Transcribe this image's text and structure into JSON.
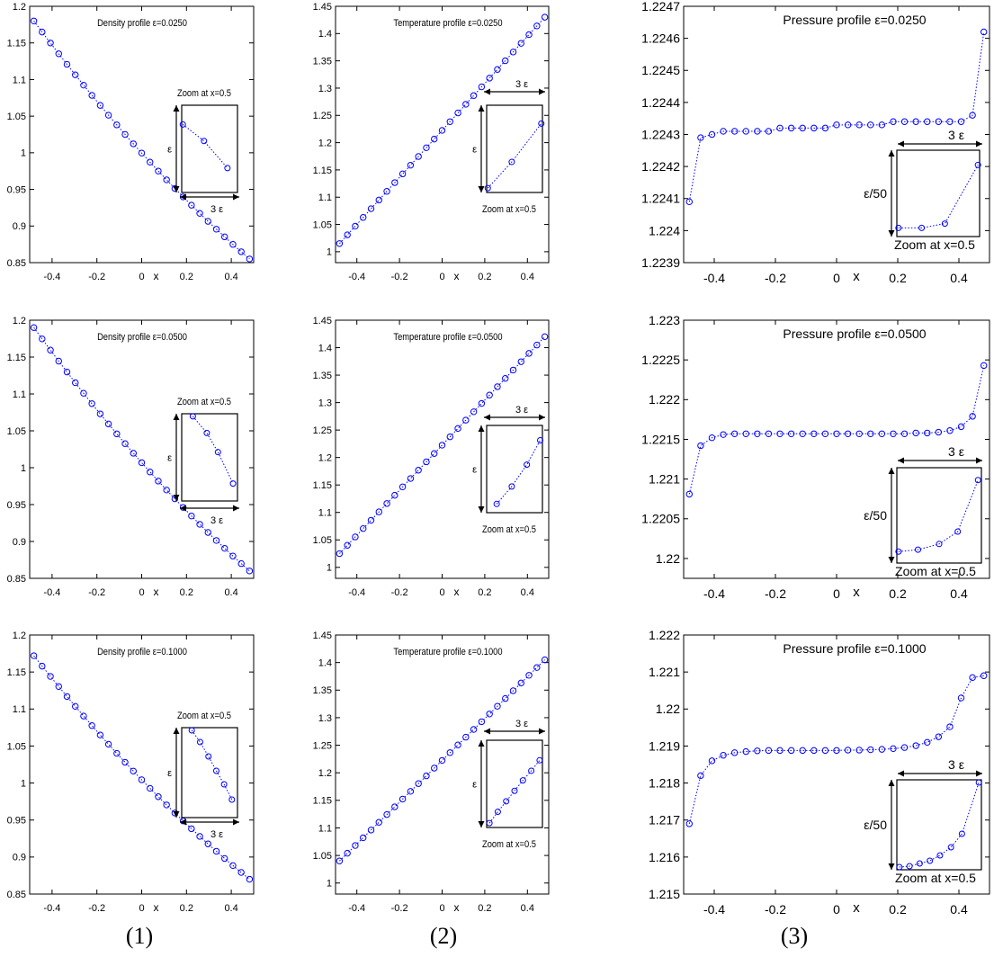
{
  "captions": [
    "(1)",
    "(2)",
    "(3)"
  ],
  "style": {
    "series_color": "#0000ff",
    "frame_color": "#000000"
  },
  "chart_data": [
    {
      "type": "scatter",
      "title": "Density profile ε=0.0250",
      "xlabel": "x",
      "ylabel": "",
      "xlim": [
        -0.5,
        0.5
      ],
      "ylim": [
        0.85,
        1.2
      ],
      "xticks": [
        "-0.4",
        "-0.2",
        "0",
        "0.2",
        "0.4"
      ],
      "yticks": [
        "0.85",
        "0.9",
        "0.95",
        "1",
        "1.05",
        "1.1",
        "1.15",
        "1.2"
      ],
      "series": [
        {
          "x_range": [
            -0.4815,
            0.4815
          ],
          "points": 27,
          "y_start": 1.18,
          "y_end": 0.855,
          "shape": "concave"
        }
      ],
      "inset": {
        "label": "Zoom at x=0.5",
        "horizontal": "3 ε",
        "vertical": "ε",
        "points": [
          [
            0.02,
            0.78
          ],
          [
            0.4,
            0.59
          ],
          [
            0.82,
            0.28
          ]
        ]
      }
    },
    {
      "type": "scatter",
      "title": "Temperature profile ε=0.0250",
      "xlabel": "x",
      "ylabel": "",
      "xlim": [
        -0.5,
        0.5
      ],
      "ylim": [
        0.98,
        1.45
      ],
      "xticks": [
        "-0.4",
        "-0.2",
        "0",
        "0.2",
        "0.4"
      ],
      "yticks": [
        "1",
        "1.05",
        "1.1",
        "1.15",
        "1.2",
        "1.25",
        "1.3",
        "1.35",
        "1.4",
        "1.45"
      ],
      "series": [
        {
          "x_range": [
            -0.4815,
            0.4815
          ],
          "points": 27,
          "y_start": 1.015,
          "y_end": 1.43,
          "shape": "linear"
        }
      ],
      "inset": {
        "label": "Zoom at x=0.5",
        "horizontal": "3 ε",
        "vertical": "ε",
        "points": [
          [
            0.02,
            0.05
          ],
          [
            0.45,
            0.35
          ],
          [
            0.98,
            0.79
          ]
        ]
      }
    },
    {
      "type": "scatter",
      "title": "Pressure profile ε=0.0250",
      "xlabel": "x",
      "ylabel": "",
      "xlim": [
        -0.5,
        0.5
      ],
      "ylim": [
        1.2239,
        1.2247
      ],
      "xticks": [
        "-0.4",
        "-0.2",
        "0",
        "0.2",
        "0.4"
      ],
      "yticks": [
        "1.2239",
        "1.224",
        "1.2241",
        "1.2242",
        "1.2243",
        "1.2244",
        "1.2245",
        "1.2246",
        "1.2247"
      ],
      "series": [
        {
          "x": [
            -0.4815,
            -0.4444,
            -0.4074,
            -0.3704,
            -0.3333,
            -0.2963,
            -0.2593,
            -0.2222,
            -0.1852,
            -0.1481,
            -0.1111,
            -0.0741,
            -0.037,
            0.0,
            0.037,
            0.0741,
            0.1111,
            0.1481,
            0.1852,
            0.2222,
            0.2593,
            0.2963,
            0.3333,
            0.3704,
            0.4074,
            0.4444,
            0.4815
          ],
          "y": [
            1.22409,
            1.22429,
            1.2243,
            1.22431,
            1.22431,
            1.22431,
            1.22431,
            1.22431,
            1.22432,
            1.22432,
            1.22432,
            1.22432,
            1.22432,
            1.22433,
            1.22433,
            1.22433,
            1.22433,
            1.22433,
            1.22434,
            1.22434,
            1.22434,
            1.22434,
            1.22434,
            1.22434,
            1.22434,
            1.22436,
            1.22462
          ]
        }
      ],
      "inset": {
        "label": "Zoom at x=0.5",
        "horizontal": "3 ε",
        "vertical": "ε/50",
        "points": [
          [
            0.02,
            0.1
          ],
          [
            0.3,
            0.1
          ],
          [
            0.58,
            0.15
          ],
          [
            0.98,
            0.83
          ]
        ]
      }
    },
    {
      "type": "scatter",
      "title": "Density profile ε=0.0500",
      "xlabel": "x",
      "ylabel": "",
      "xlim": [
        -0.5,
        0.5
      ],
      "ylim": [
        0.85,
        1.2
      ],
      "xticks": [
        "-0.4",
        "-0.2",
        "0",
        "0.2",
        "0.4"
      ],
      "yticks": [
        "0.85",
        "0.9",
        "0.95",
        "1",
        "1.05",
        "1.1",
        "1.15",
        "1.2"
      ],
      "series": [
        {
          "x_range": [
            -0.4815,
            0.4815
          ],
          "points": 27,
          "y_start": 1.19,
          "y_end": 0.86,
          "shape": "concave"
        }
      ],
      "inset": {
        "label": "Zoom at x=0.5",
        "horizontal": "3 ε",
        "vertical": "ε",
        "points": [
          [
            0.2,
            0.97
          ],
          [
            0.45,
            0.78
          ],
          [
            0.65,
            0.56
          ],
          [
            0.92,
            0.2
          ]
        ]
      }
    },
    {
      "type": "scatter",
      "title": "Temperature profile ε=0.0500",
      "xlabel": "x",
      "ylabel": "",
      "xlim": [
        -0.5,
        0.5
      ],
      "ylim": [
        0.98,
        1.45
      ],
      "xticks": [
        "-0.4",
        "-0.2",
        "0",
        "0.2",
        "0.4"
      ],
      "yticks": [
        "1",
        "1.05",
        "1.1",
        "1.15",
        "1.2",
        "1.25",
        "1.3",
        "1.35",
        "1.4",
        "1.45"
      ],
      "series": [
        {
          "x_range": [
            -0.4815,
            0.4815
          ],
          "points": 27,
          "y_start": 1.025,
          "y_end": 1.42,
          "shape": "linear"
        }
      ],
      "inset": {
        "label": "Zoom at x=0.5",
        "horizontal": "3 ε",
        "vertical": "ε",
        "points": [
          [
            0.18,
            0.1
          ],
          [
            0.45,
            0.3
          ],
          [
            0.72,
            0.55
          ],
          [
            0.96,
            0.83
          ]
        ]
      }
    },
    {
      "type": "scatter",
      "title": "Pressure profile ε=0.0500",
      "xlabel": "x",
      "ylabel": "",
      "xlim": [
        -0.5,
        0.5
      ],
      "ylim": [
        1.21975,
        1.223
      ],
      "xticks": [
        "-0.4",
        "-0.2",
        "0",
        "0.2",
        "0.4"
      ],
      "yticks": [
        "1.22",
        "1.2205",
        "1.221",
        "1.2215",
        "1.222",
        "1.2225",
        "1.223"
      ],
      "series": [
        {
          "x": [
            -0.4815,
            -0.4444,
            -0.4074,
            -0.3704,
            -0.3333,
            -0.2963,
            -0.2593,
            -0.2222,
            -0.1852,
            -0.1481,
            -0.1111,
            -0.0741,
            -0.037,
            0.0,
            0.037,
            0.0741,
            0.1111,
            0.1481,
            0.1852,
            0.2222,
            0.2593,
            0.2963,
            0.3333,
            0.3704,
            0.4074,
            0.4444,
            0.4815
          ],
          "y": [
            1.22081,
            1.22142,
            1.22152,
            1.22156,
            1.22157,
            1.22157,
            1.22157,
            1.22157,
            1.22157,
            1.22157,
            1.22157,
            1.22157,
            1.22157,
            1.22157,
            1.22157,
            1.22157,
            1.22157,
            1.22157,
            1.22157,
            1.22157,
            1.22158,
            1.22158,
            1.22159,
            1.22161,
            1.22166,
            1.22179,
            1.22243
          ]
        }
      ],
      "inset": {
        "label": "Zoom at x=0.5",
        "horizontal": "3 ε",
        "vertical": "ε/50",
        "points": [
          [
            0.02,
            0.12
          ],
          [
            0.25,
            0.14
          ],
          [
            0.5,
            0.2
          ],
          [
            0.72,
            0.33
          ],
          [
            0.96,
            0.87
          ]
        ]
      }
    },
    {
      "type": "scatter",
      "title": "Density profile ε=0.1000",
      "xlabel": "x",
      "ylabel": "",
      "xlim": [
        -0.5,
        0.5
      ],
      "ylim": [
        0.85,
        1.2
      ],
      "xticks": [
        "-0.4",
        "-0.2",
        "0",
        "0.2",
        "0.4"
      ],
      "yticks": [
        "0.85",
        "0.9",
        "0.95",
        "1",
        "1.05",
        "1.1",
        "1.15",
        "1.2"
      ],
      "series": [
        {
          "x_range": [
            -0.4815,
            0.4815
          ],
          "points": 27,
          "y_start": 1.172,
          "y_end": 0.87,
          "shape": "concave"
        }
      ],
      "inset": {
        "label": "Zoom at x=0.5",
        "horizontal": "3 ε",
        "vertical": "ε",
        "points": [
          [
            0.18,
            0.97
          ],
          [
            0.33,
            0.84
          ],
          [
            0.48,
            0.68
          ],
          [
            0.62,
            0.52
          ],
          [
            0.76,
            0.37
          ],
          [
            0.9,
            0.2
          ]
        ]
      }
    },
    {
      "type": "scatter",
      "title": "Temperature profile ε=0.1000",
      "xlabel": "x",
      "ylabel": "",
      "xlim": [
        -0.5,
        0.5
      ],
      "ylim": [
        0.98,
        1.45
      ],
      "xticks": [
        "-0.4",
        "-0.2",
        "0",
        "0.2",
        "0.4"
      ],
      "yticks": [
        "1",
        "1.05",
        "1.1",
        "1.15",
        "1.2",
        "1.25",
        "1.3",
        "1.35",
        "1.4",
        "1.45"
      ],
      "series": [
        {
          "x_range": [
            -0.4815,
            0.4815
          ],
          "points": 27,
          "y_start": 1.04,
          "y_end": 1.405,
          "shape": "linear"
        }
      ],
      "inset": {
        "label": "Zoom at x=0.5",
        "horizontal": "3 ε",
        "vertical": "ε",
        "points": [
          [
            0.05,
            0.05
          ],
          [
            0.2,
            0.18
          ],
          [
            0.35,
            0.3
          ],
          [
            0.5,
            0.42
          ],
          [
            0.65,
            0.54
          ],
          [
            0.8,
            0.65
          ],
          [
            0.95,
            0.77
          ]
        ]
      }
    },
    {
      "type": "scatter",
      "title": "Pressure profile ε=0.1000",
      "xlabel": "x",
      "ylabel": "",
      "xlim": [
        -0.5,
        0.5
      ],
      "ylim": [
        1.215,
        1.222
      ],
      "xticks": [
        "-0.4",
        "-0.2",
        "0",
        "0.2",
        "0.4"
      ],
      "yticks": [
        "1.215",
        "1.216",
        "1.217",
        "1.218",
        "1.219",
        "1.22",
        "1.221",
        "1.222"
      ],
      "series": [
        {
          "x": [
            -0.4815,
            -0.4444,
            -0.4074,
            -0.3704,
            -0.3333,
            -0.2963,
            -0.2593,
            -0.2222,
            -0.1852,
            -0.1481,
            -0.1111,
            -0.0741,
            -0.037,
            0.0,
            0.037,
            0.0741,
            0.1111,
            0.1481,
            0.1852,
            0.2222,
            0.2593,
            0.2963,
            0.3333,
            0.3704,
            0.4074,
            0.4444,
            0.4815
          ],
          "y": [
            1.2169,
            1.2182,
            1.2186,
            1.21875,
            1.21882,
            1.21885,
            1.21887,
            1.21888,
            1.21888,
            1.21888,
            1.21888,
            1.21888,
            1.21888,
            1.21888,
            1.21889,
            1.21889,
            1.2189,
            1.21891,
            1.21893,
            1.21896,
            1.21901,
            1.2191,
            1.21925,
            1.21952,
            1.2203,
            1.22085,
            1.2209
          ]
        }
      ],
      "inset": {
        "label": "Zoom at x=0.5",
        "horizontal": "3 ε",
        "vertical": "ε/50",
        "points": [
          [
            0.03,
            0.03
          ],
          [
            0.15,
            0.04
          ],
          [
            0.27,
            0.07
          ],
          [
            0.39,
            0.1
          ],
          [
            0.51,
            0.16
          ],
          [
            0.64,
            0.25
          ],
          [
            0.77,
            0.4
          ],
          [
            0.97,
            0.97
          ]
        ]
      }
    }
  ]
}
